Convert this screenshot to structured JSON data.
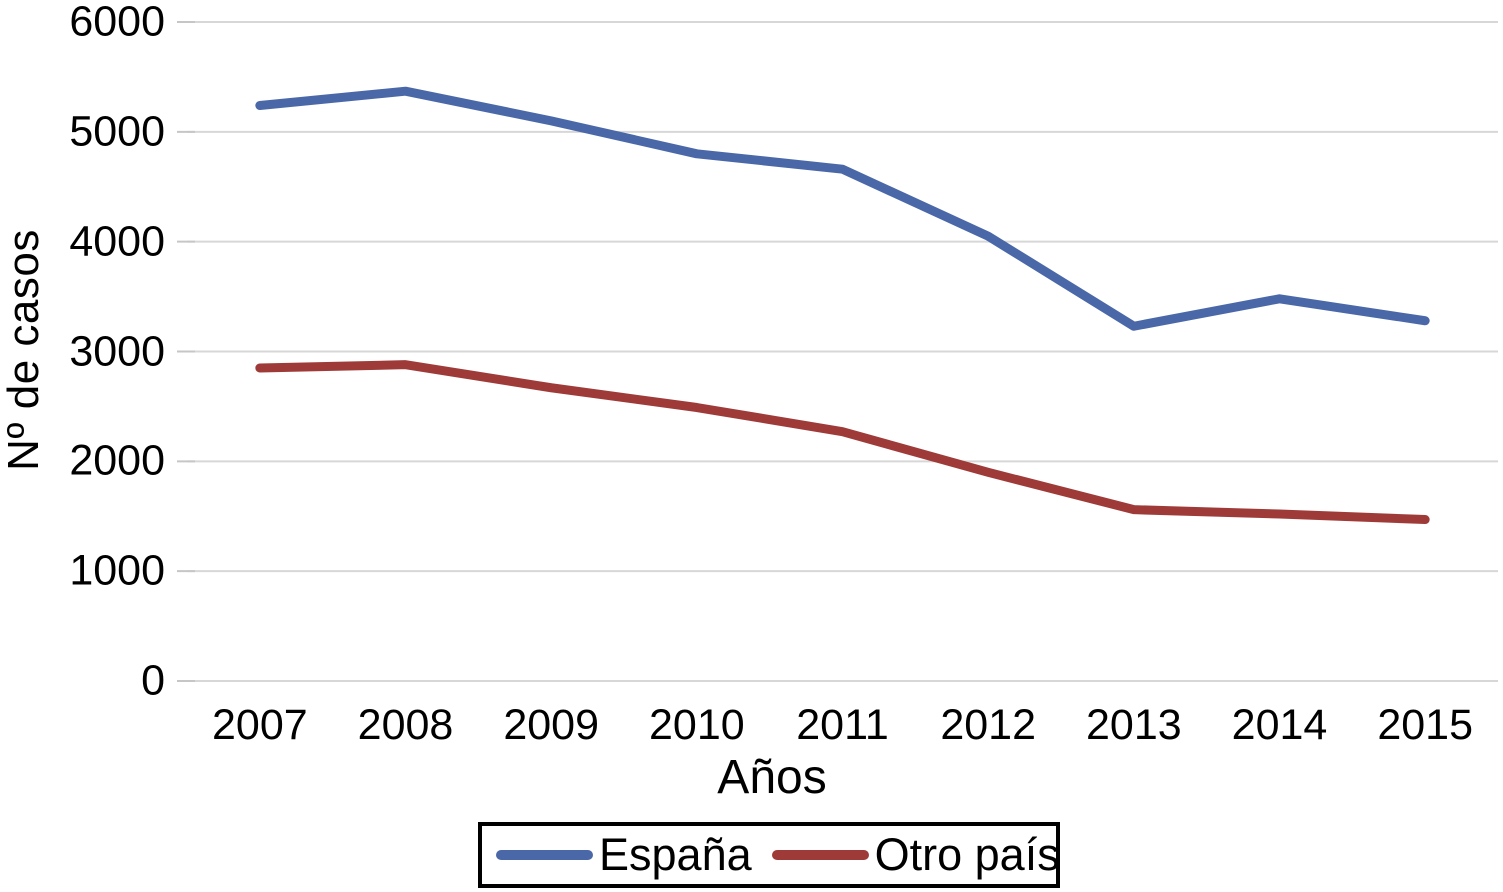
{
  "chart_data": {
    "type": "line",
    "title": "",
    "xlabel": "Años",
    "ylabel": "Nº de casos",
    "categories": [
      "2007",
      "2008",
      "2009",
      "2010",
      "2011",
      "2012",
      "2013",
      "2014",
      "2015"
    ],
    "series": [
      {
        "name": "España",
        "color": "#4a68a8",
        "values": [
          5240,
          5370,
          5100,
          4800,
          4660,
          4050,
          3230,
          3480,
          3280
        ]
      },
      {
        "name": "Otro país",
        "color": "#9e3b38",
        "values": [
          2850,
          2880,
          2670,
          2490,
          2270,
          1900,
          1560,
          1520,
          1470
        ]
      }
    ],
    "ylim": [
      0,
      6000
    ],
    "yticks": [
      0,
      1000,
      2000,
      3000,
      4000,
      5000,
      6000
    ],
    "grid": true,
    "legend_position": "bottom",
    "line_width": 9
  },
  "colors": {
    "gridline": "#d7d7d7",
    "tick_mark": "#c6c6c6",
    "text": "#000000",
    "legend_border": "#000000",
    "background": "#ffffff"
  }
}
